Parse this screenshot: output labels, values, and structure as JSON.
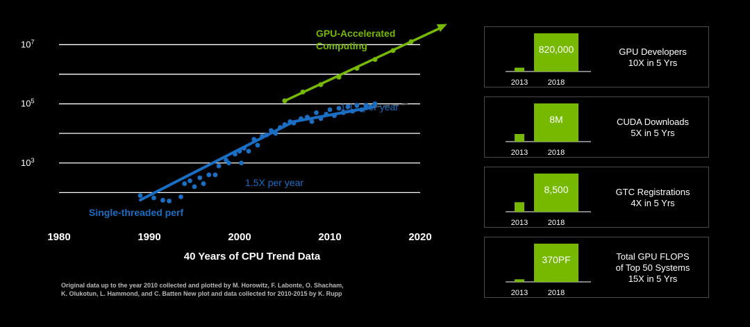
{
  "colors": {
    "background": "#000000",
    "gridline": "#ffffff",
    "cpu_trend": "#1a6fc4",
    "gpu_trend": "#76b900",
    "dashed_extension": "#555555",
    "axis_text": "#ffffff",
    "panel_border": "#4a4a4a",
    "credit_text": "#b8b8b8"
  },
  "chart_data": [
    {
      "type": "scatter",
      "title": "40 Years of CPU Trend Data",
      "xlabel": "",
      "ylabel": "",
      "xlim": [
        1980,
        2020
      ],
      "ylim_log10": [
        1.0,
        7.5
      ],
      "y_scale": "log",
      "grid": true,
      "x_ticks": [
        1980,
        1990,
        2000,
        2010,
        2020
      ],
      "y_ticks": [
        {
          "value": 1000,
          "base": "10",
          "exp": "3"
        },
        {
          "value": 100000,
          "base": "10",
          "exp": "5"
        },
        {
          "value": 10000000,
          "base": "10",
          "exp": "7"
        }
      ],
      "series": [
        {
          "name": "Single-threaded perf",
          "points": [
            [
              1989.0,
              79
            ],
            [
              1990.5,
              66
            ],
            [
              1991.5,
              55
            ],
            [
              1992.2,
              52
            ],
            [
              1993.5,
              72
            ],
            [
              1993.9,
              200
            ],
            [
              1994.5,
              251
            ],
            [
              1995.0,
              158
            ],
            [
              1995.6,
              316
            ],
            [
              1996.0,
              200
            ],
            [
              1996.6,
              398
            ],
            [
              1997.3,
              398
            ],
            [
              1997.7,
              794
            ],
            [
              1998.5,
              1259
            ],
            [
              1998.8,
              1000
            ],
            [
              1999.5,
              2000
            ],
            [
              2000.0,
              2512
            ],
            [
              2000.2,
              1000
            ],
            [
              2000.5,
              3162
            ],
            [
              2001.0,
              2512
            ],
            [
              2001.6,
              6310
            ],
            [
              2002.0,
              3981
            ],
            [
              2002.5,
              7943
            ],
            [
              2003.0,
              8912
            ],
            [
              2003.5,
              12589
            ],
            [
              2004.0,
              10000
            ],
            [
              2004.5,
              15849
            ],
            [
              2005.0,
              19953
            ],
            [
              2005.6,
              25119
            ],
            [
              2006.0,
              22387
            ],
            [
              2006.8,
              31623
            ],
            [
              2007.5,
              35481
            ],
            [
              2008.0,
              25119
            ],
            [
              2008.5,
              50119
            ],
            [
              2009.0,
              31623
            ],
            [
              2009.6,
              44668
            ],
            [
              2010.0,
              63096
            ],
            [
              2010.5,
              39811
            ],
            [
              2011.0,
              70795
            ],
            [
              2011.5,
              50119
            ],
            [
              2012.0,
              79433
            ],
            [
              2012.5,
              56234
            ],
            [
              2013.0,
              89125
            ],
            [
              2013.5,
              63096
            ],
            [
              2014.0,
              89125
            ],
            [
              2014.5,
              79433
            ],
            [
              2015.0,
              100000
            ]
          ]
        }
      ],
      "cpu_trend_segments": [
        {
          "label": "1.5X per year",
          "x": [
            1989.0,
            2006.0
          ],
          "y": [
            56,
            25119
          ]
        },
        {
          "label": "1.1X per year",
          "x": [
            2006.0,
            2015.0
          ],
          "y": [
            25119,
            79433
          ]
        }
      ],
      "dashed_extension": {
        "x": [
          2015.0,
          2019.0
        ],
        "y": [
          79433,
          100000
        ]
      },
      "gpu_trend": {
        "label_line1": "GPU-Accelerated",
        "label_line2": "Computing",
        "x": [
          2005.0,
          2023.0
        ],
        "y": [
          125893,
          50118723
        ],
        "markers": [
          [
            2005.0,
            125893
          ],
          [
            2007.0,
            251189
          ],
          [
            2009.0,
            446684
          ],
          [
            2011.0,
            794328
          ],
          [
            2013.0,
            1584893
          ],
          [
            2015.0,
            3162278
          ],
          [
            2017.0,
            6309573
          ],
          [
            2019.0,
            12589254
          ]
        ]
      },
      "annotations": {
        "single_threaded": "Single-threaded perf",
        "rate_early": "1.5X per year",
        "rate_late": "1.1X per year"
      }
    },
    {
      "type": "bar",
      "categories": [
        "2013",
        "2018"
      ],
      "values": [
        82000,
        820000
      ],
      "value_label": "820,000",
      "description_line1": "GPU Developers",
      "description_line2": "10X in 5 Yrs"
    },
    {
      "type": "bar",
      "categories": [
        "2013",
        "2018"
      ],
      "values": [
        1600000,
        8000000
      ],
      "value_label": "8M",
      "description_line1": "CUDA Downloads",
      "description_line2": "5X in 5 Yrs"
    },
    {
      "type": "bar",
      "categories": [
        "2013",
        "2018"
      ],
      "values": [
        2125,
        8500
      ],
      "value_label": "8,500",
      "description_line1": "GTC Registrations",
      "description_line2": "4X in 5 Yrs"
    },
    {
      "type": "bar",
      "categories": [
        "2013",
        "2018"
      ],
      "values": [
        24.7,
        370
      ],
      "value_label": "370PF",
      "description_line1": "Total GPU FLOPS",
      "description_line2": "of Top 50 Systems",
      "description_line3": "15X in 5 Yrs"
    }
  ],
  "credit": {
    "line1": "Original data up to the year 2010 collected and plotted by M. Horowitz, F. Labonte, O. Shacham,",
    "line2": "K. Olukotun, L. Hammond, and C. Batten New plot and data collected for 2010-2015 by K. Rupp"
  }
}
